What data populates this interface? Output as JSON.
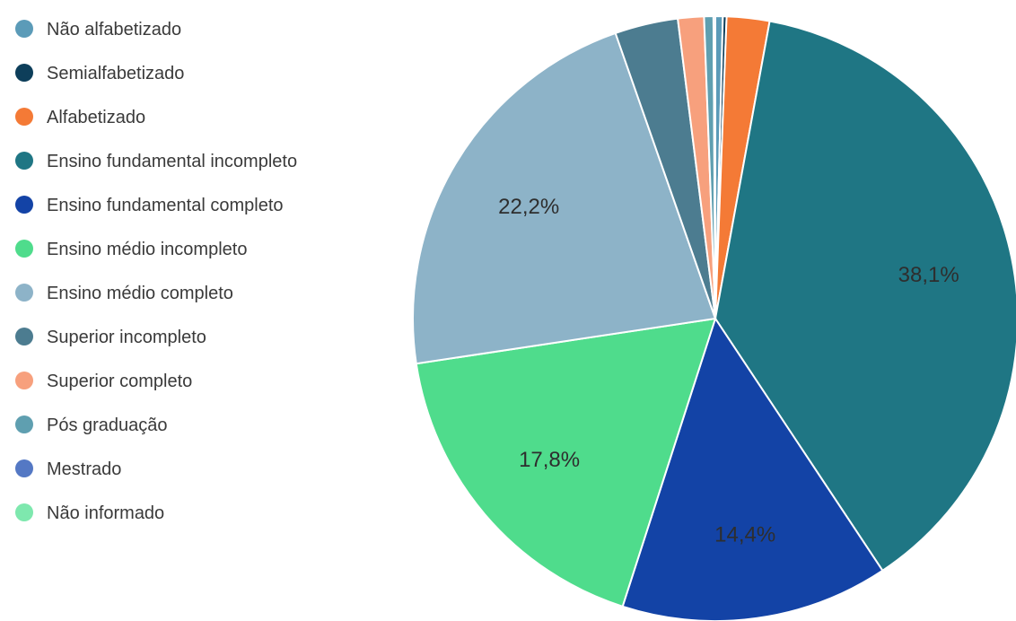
{
  "chart_data": {
    "type": "pie",
    "title": "",
    "legend_position": "left",
    "categories": [
      "Não alfabetizado",
      "Semialfabetizado",
      "Alfabetizado",
      "Ensino fundamental incompleto",
      "Ensino fundamental completo",
      "Ensino médio incompleto",
      "Ensino médio completo",
      "Superior incompleto",
      "Superior completo",
      "Pós graduação",
      "Mestrado",
      "Não informado"
    ],
    "values": [
      0.4,
      0.2,
      2.3,
      38.1,
      14.4,
      17.8,
      22.2,
      3.4,
      1.4,
      0.5,
      0.1,
      0.0
    ],
    "data_labels": [
      "",
      "",
      "",
      "38,1%",
      "14,4%",
      "17,8%",
      "22,2%",
      "",
      "",
      "",
      "",
      ""
    ],
    "colors": [
      "#5b9bb8",
      "#0d3e5a",
      "#f47a36",
      "#1f7684",
      "#1343a6",
      "#4fdc8c",
      "#8db3c8",
      "#4c7c90",
      "#f7a07d",
      "#5f9fb0",
      "#5478c4",
      "#7ee8ae"
    ]
  }
}
